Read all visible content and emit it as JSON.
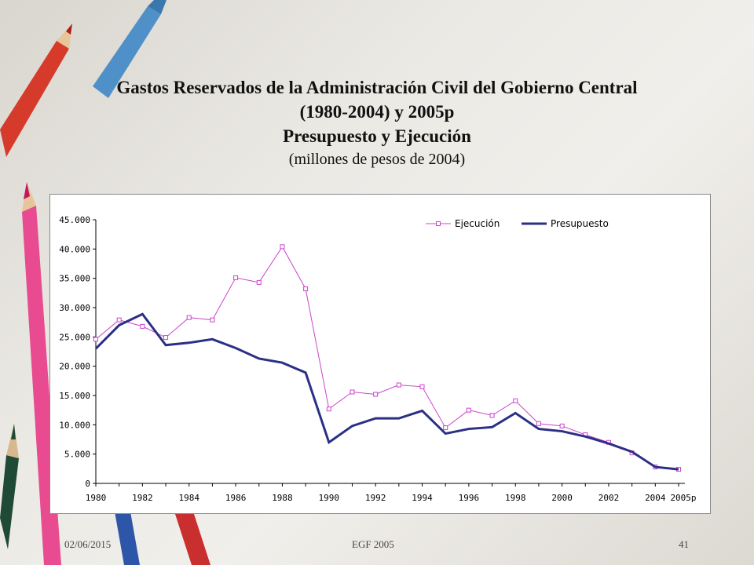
{
  "title": {
    "line1": "Gastos Reservados de la  Administración Civil del Gobierno Central",
    "line2": "(1980-2004) y 2005p",
    "line3": "Presupuesto y Ejecución",
    "line4": "(millones de pesos de 2004)"
  },
  "footer": {
    "date": "02/06/2015",
    "center": "EGF 2005",
    "page": "41"
  },
  "colors": {
    "ejecucion": "#cc44cc",
    "presupuesto": "#2b2f85"
  },
  "chart_data": {
    "type": "line",
    "x": [
      "1980",
      "1981",
      "1982",
      "1983",
      "1984",
      "1985",
      "1986",
      "1987",
      "1988",
      "1989",
      "1990",
      "1991",
      "1992",
      "1993",
      "1994",
      "1995",
      "1996",
      "1997",
      "1998",
      "1999",
      "2000",
      "2001",
      "2002",
      "2003",
      "2004",
      "2005p"
    ],
    "x_tick_labels": [
      "1980",
      "1982",
      "1984",
      "1986",
      "1988",
      "1990",
      "1992",
      "1994",
      "1996",
      "1998",
      "2000",
      "2002",
      "2004",
      "2005p"
    ],
    "y_tick_labels": [
      "0",
      "5.000",
      "10.000",
      "15.000",
      "20.000",
      "25.000",
      "30.000",
      "35.000",
      "40.000",
      "45.000"
    ],
    "ylim": [
      0,
      45000
    ],
    "grid": false,
    "legend_position": "top-right",
    "series": [
      {
        "name": "Ejecución",
        "marker": "square",
        "values": [
          24600,
          27900,
          26800,
          24900,
          28300,
          27900,
          35100,
          34300,
          40400,
          33200,
          12700,
          15600,
          15200,
          16800,
          16500,
          9500,
          12500,
          11600,
          14100,
          10200,
          9800,
          8300,
          7000,
          5200,
          2800,
          2400
        ]
      },
      {
        "name": "Presupuesto",
        "marker": "none",
        "values": [
          23000,
          27000,
          28900,
          23600,
          24000,
          24600,
          23100,
          21300,
          20600,
          18900,
          7000,
          9800,
          11100,
          11100,
          12400,
          8500,
          9300,
          9600,
          12000,
          9300,
          8900,
          8000,
          6800,
          5400,
          2800,
          2400
        ]
      }
    ]
  }
}
